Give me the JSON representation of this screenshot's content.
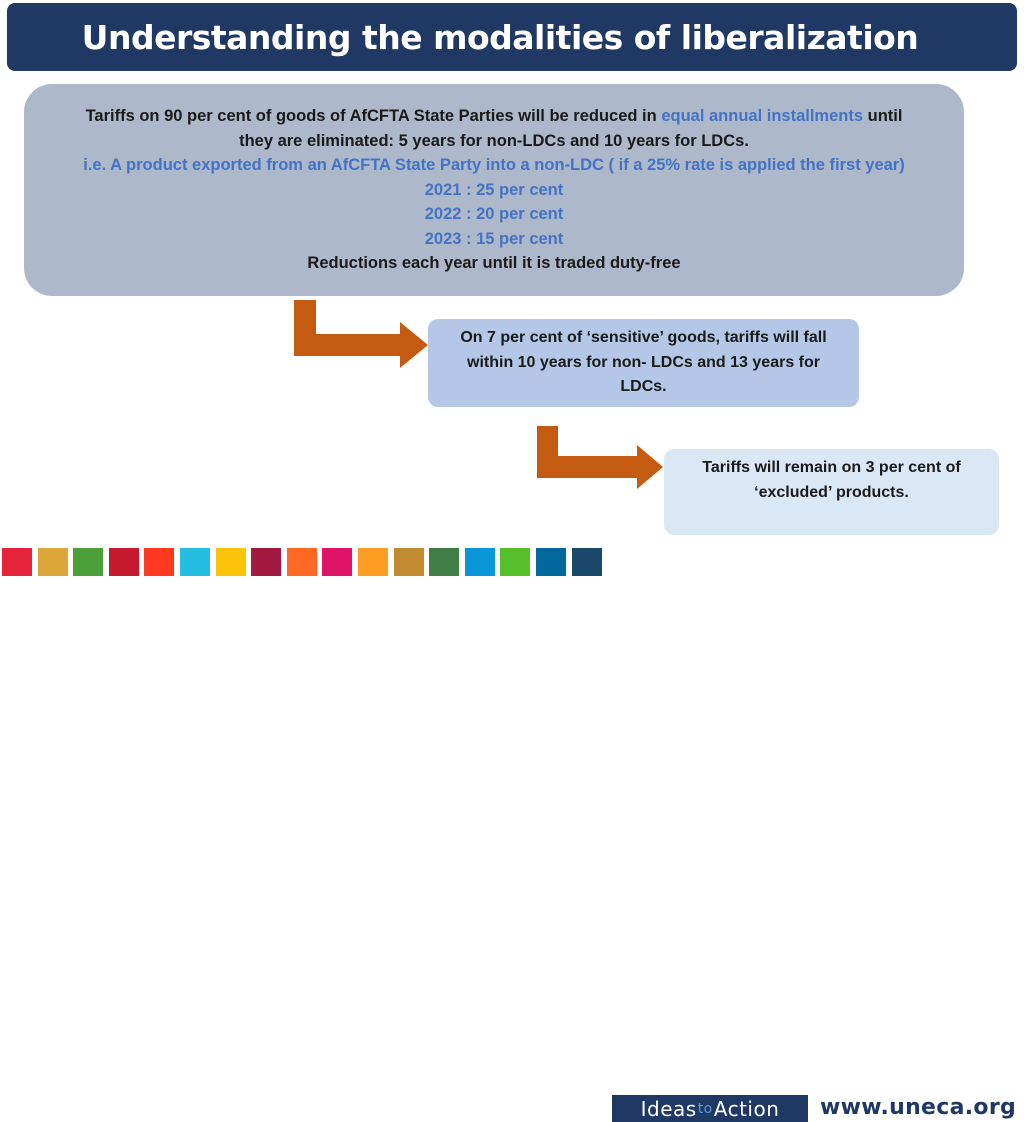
{
  "slide": {
    "title": "Understanding the modalities of liberalization"
  },
  "main_box": {
    "text_part1": "Tariffs on 90 per cent of goods of AfCFTA State Parties will be reduced in ",
    "highlight": "equal annual installments",
    "text_part2": " until",
    "line2": "they are eliminated: 5 years for non-LDCs and 10 years for LDCs.",
    "example_line": "i.e. A product exported from an AfCFTA State Party into a non-LDC ( if a 25% rate is applied the first year)",
    "year_2021": "2021 : 25 per cent",
    "year_2022": "2022 : 20 per cent",
    "year_2023": "2023 : 15 per cent",
    "closing": "Reductions each year until it is traded duty-free"
  },
  "sensitive_box": {
    "text": "On 7 per cent of ‘sensitive’ goods, tariffs will fall within 10 years for non- LDCs and 13 years for LDCs."
  },
  "excluded_box": {
    "text": "Tariffs will remain on 3 per cent of ‘excluded’ products."
  },
  "footer": {
    "ideas_part1": "Ideas",
    "ideas_part2": "to",
    "ideas_part3": "Action",
    "url": "www.uneca.org"
  },
  "colors": {
    "title_bg": "#1f3864",
    "main_box_bg": "#adb9ca",
    "highlight_text": "#4472c4",
    "sensitive_box_bg": "#b4c7e7",
    "excluded_box_bg": "#dae8f6",
    "arrow": "#c55a11"
  },
  "sdg_colors": [
    "#e5243b",
    "#dda63a",
    "#4c9f38",
    "#c5192d",
    "#ff3a21",
    "#26bde2",
    "#fcc30b",
    "#a21942",
    "#fd6925",
    "#dd1367",
    "#fd9d24",
    "#bf8b2e",
    "#3f7e44",
    "#0a97d9",
    "#56c02b",
    "#00689d",
    "#19486a"
  ]
}
